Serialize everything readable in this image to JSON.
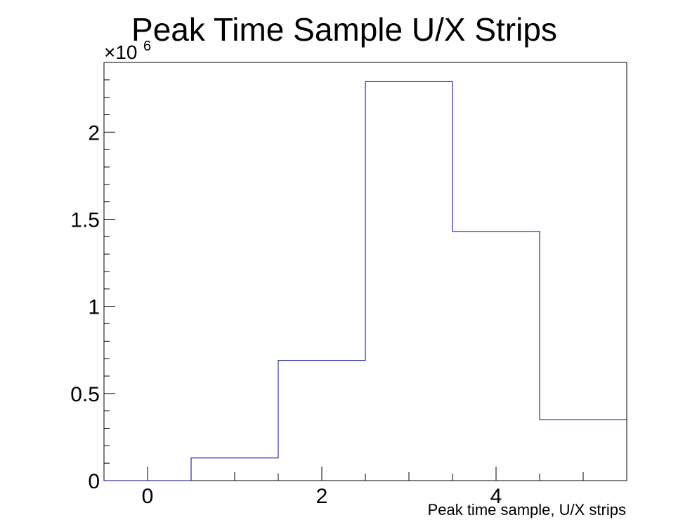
{
  "chart_data": {
    "type": "histogram",
    "title": "Peak Time Sample U/X Strips",
    "xlabel": "Peak time sample, U/X strips",
    "ylabel": "",
    "multiplier_base": "×10",
    "multiplier_exponent": "6",
    "xlim": [
      -0.5,
      5.5
    ],
    "ylim": [
      0,
      2.4
    ],
    "xticks": [
      0,
      2,
      4
    ],
    "xtick_labels": [
      "0",
      "2",
      "4"
    ],
    "yticks": [
      0,
      0.5,
      1,
      1.5,
      2
    ],
    "ytick_labels": [
      "0",
      "0.5",
      "1",
      "1.5",
      "2"
    ],
    "bins": [
      {
        "low": -0.5,
        "high": 0.5,
        "value": 0
      },
      {
        "low": 0.5,
        "high": 1.5,
        "value": 0.13
      },
      {
        "low": 1.5,
        "high": 2.5,
        "value": 0.69
      },
      {
        "low": 2.5,
        "high": 3.5,
        "value": 2.29
      },
      {
        "low": 3.5,
        "high": 4.5,
        "value": 1.43
      },
      {
        "low": 4.5,
        "high": 5.5,
        "value": 0.35
      }
    ],
    "value_unit_multiplier": 1000000,
    "line_color": "#00008b",
    "grid": false,
    "legend": "none"
  }
}
